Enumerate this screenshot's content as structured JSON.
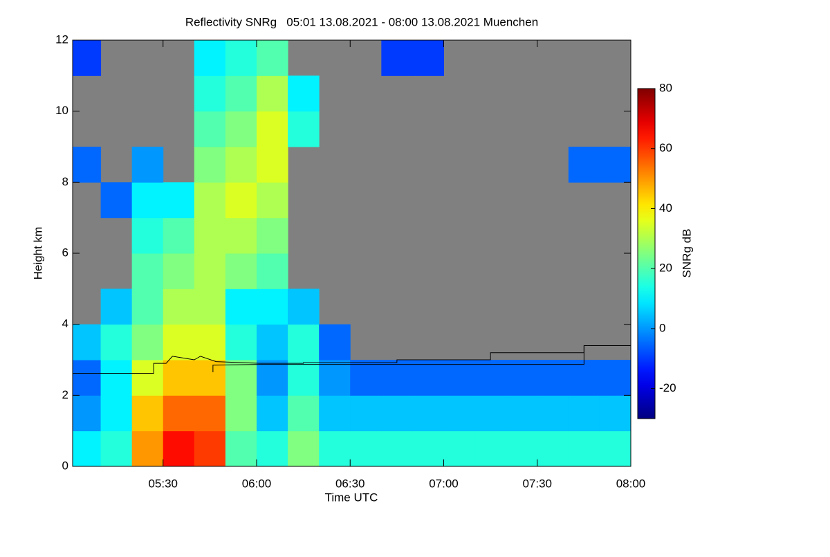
{
  "chart_data": {
    "type": "heatmap",
    "title": "Reflectivity SNRg   05:01 13.08.2021 - 08:00 13.08.2021 Muenchen",
    "x_label": "Time UTC",
    "y_label": "Height km",
    "colorbar_label": "SNRg dB",
    "background": "#808080",
    "colormap": "jet",
    "xlim": [
      301,
      480
    ],
    "xticks": [
      {
        "value": 330,
        "label": "05:30"
      },
      {
        "value": 360,
        "label": "06:00"
      },
      {
        "value": 390,
        "label": "06:30"
      },
      {
        "value": 420,
        "label": "07:00"
      },
      {
        "value": 450,
        "label": "07:30"
      },
      {
        "value": 480,
        "label": "08:00"
      }
    ],
    "ylim": [
      0,
      12
    ],
    "yticks": [
      0,
      2,
      4,
      6,
      8,
      10,
      12
    ],
    "clim": [
      -30,
      80
    ],
    "cticks": [
      -20,
      0,
      20,
      40,
      60,
      80
    ],
    "x_edges": [
      300,
      310,
      320,
      330,
      340,
      350,
      360,
      370,
      380,
      390,
      400,
      410,
      420,
      430,
      440,
      450,
      460,
      470,
      480
    ],
    "y_edges": [
      0,
      1,
      2,
      3,
      4,
      5,
      6,
      7,
      8,
      9,
      10,
      11,
      12
    ],
    "values": [
      [
        10,
        15,
        50,
        65,
        60,
        20,
        15,
        25,
        15,
        15,
        15,
        15,
        15,
        15,
        15,
        15,
        15,
        15
      ],
      [
        0,
        10,
        45,
        55,
        55,
        25,
        5,
        20,
        5,
        5,
        5,
        5,
        5,
        5,
        5,
        5,
        5,
        5
      ],
      [
        -5,
        10,
        35,
        45,
        45,
        25,
        0,
        15,
        0,
        -5,
        -5,
        -5,
        -5,
        -5,
        -5,
        -5,
        -5,
        -5
      ],
      [
        5,
        15,
        25,
        35,
        35,
        15,
        5,
        15,
        -5,
        null,
        null,
        null,
        null,
        null,
        null,
        null,
        null,
        null
      ],
      [
        null,
        5,
        20,
        30,
        30,
        10,
        10,
        5,
        null,
        null,
        null,
        null,
        null,
        null,
        null,
        null,
        null,
        null
      ],
      [
        null,
        null,
        20,
        25,
        30,
        25,
        20,
        null,
        null,
        null,
        null,
        null,
        null,
        null,
        null,
        null,
        null,
        null
      ],
      [
        null,
        null,
        15,
        20,
        30,
        30,
        25,
        null,
        null,
        null,
        null,
        null,
        null,
        null,
        null,
        null,
        null,
        null
      ],
      [
        null,
        -5,
        10,
        10,
        30,
        35,
        30,
        null,
        null,
        null,
        null,
        null,
        null,
        null,
        null,
        null,
        null,
        null
      ],
      [
        -5,
        null,
        0,
        null,
        25,
        30,
        35,
        null,
        null,
        null,
        null,
        null,
        null,
        null,
        null,
        null,
        -5,
        -5
      ],
      [
        null,
        null,
        null,
        null,
        20,
        25,
        35,
        15,
        null,
        null,
        null,
        null,
        null,
        null,
        null,
        null,
        null,
        null
      ],
      [
        null,
        null,
        null,
        null,
        15,
        20,
        30,
        10,
        null,
        null,
        null,
        null,
        null,
        null,
        null,
        null,
        null,
        null
      ],
      [
        -10,
        null,
        null,
        null,
        10,
        15,
        20,
        null,
        null,
        null,
        -10,
        -10,
        null,
        null,
        null,
        null,
        null,
        null
      ]
    ],
    "lines": [
      {
        "color": "#000000",
        "x": [
          301,
          327,
          327,
          331,
          333,
          340,
          342,
          347,
          361,
          375,
          375,
          405,
          405,
          435,
          435,
          465,
          465,
          480
        ],
        "y": [
          2.62,
          2.62,
          2.9,
          2.9,
          3.1,
          3.0,
          3.1,
          2.95,
          2.9,
          2.9,
          2.92,
          2.92,
          3.0,
          3.0,
          3.2,
          3.2,
          3.4,
          3.4
        ]
      },
      {
        "color": "#000000",
        "x": [
          346,
          346,
          361,
          465,
          465
        ],
        "y": [
          2.65,
          2.85,
          2.87,
          2.87,
          3.4
        ]
      }
    ]
  }
}
